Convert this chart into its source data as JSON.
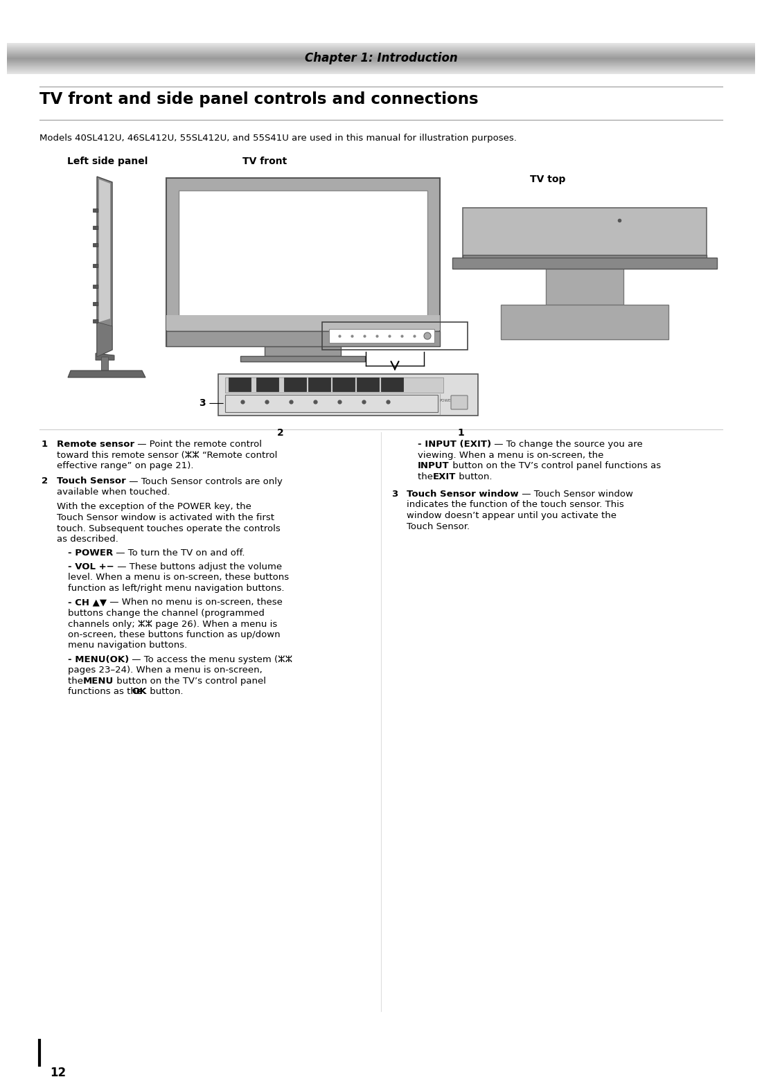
{
  "page_width": 10.8,
  "page_height": 15.32,
  "bg_color": "#ffffff",
  "header_text": "Chapter 1: Introduction",
  "main_title": "TV front and side panel controls and connections",
  "subtitle": "Models 40SL412U, 46SL412U, 55SL412U, and 55S41U are used in this manual for illustration purposes.",
  "label_left_panel": "Left side panel",
  "label_tv_front": "TV front",
  "label_tv_top": "TV top",
  "number_label": "12"
}
